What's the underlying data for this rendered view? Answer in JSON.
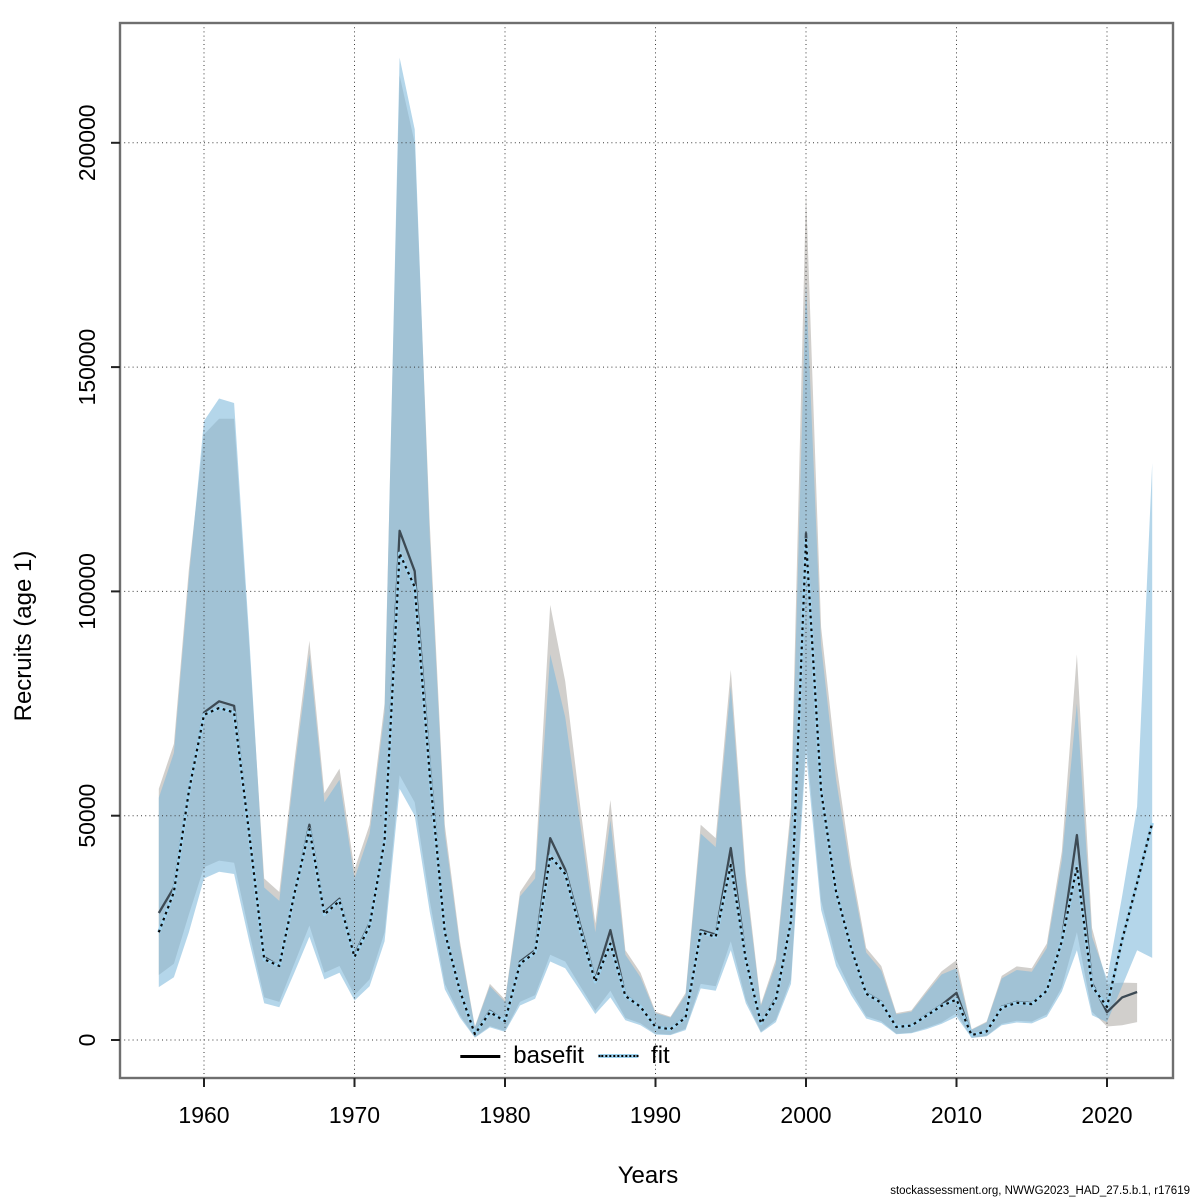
{
  "footer": {
    "text": "stockassessment.org, NWWG2023_HAD_27.5.b.1, r17619"
  },
  "chart_data": {
    "type": "line",
    "title": "",
    "xlabel": "Years",
    "ylabel": "Recruits (age 1)",
    "grid": "dotted",
    "legend_position": "bottom-center",
    "x_ticks": [
      1960,
      1970,
      1980,
      1990,
      2000,
      2010,
      2020
    ],
    "y_ticks": [
      0,
      50000,
      100000,
      150000,
      200000
    ],
    "xlim": [
      1954.4,
      2024.4
    ],
    "ylim": [
      -8500,
      226700
    ],
    "legend": [
      {
        "label": "basefit",
        "style": "solid",
        "color": "#000000"
      },
      {
        "label": "fit",
        "style": "dotted",
        "color": "#000000",
        "underlay": "#9fd3ef"
      }
    ],
    "years": [
      1957,
      1958,
      1959,
      1960,
      1961,
      1962,
      1963,
      1964,
      1965,
      1966,
      1967,
      1968,
      1969,
      1970,
      1971,
      1972,
      1973,
      1974,
      1975,
      1976,
      1977,
      1978,
      1979,
      1980,
      1981,
      1982,
      1983,
      1984,
      1985,
      1986,
      1987,
      1988,
      1989,
      1990,
      1991,
      1992,
      1993,
      1994,
      1995,
      1996,
      1997,
      1998,
      1999,
      2000,
      2001,
      2002,
      2003,
      2004,
      2005,
      2006,
      2007,
      2008,
      2009,
      2010,
      2011,
      2012,
      2013,
      2014,
      2015,
      2016,
      2017,
      2018,
      2019,
      2020,
      2021,
      2022,
      2023
    ],
    "series": [
      {
        "name": "basefit",
        "line_color": "#3d4a54",
        "band_color": "#d1cfcc",
        "values": [
          28300,
          34000,
          56000,
          73000,
          75500,
          74500,
          46500,
          18500,
          16500,
          32500,
          48000,
          28500,
          31500,
          19000,
          26000,
          45000,
          113500,
          104500,
          61000,
          24500,
          11000,
          1500,
          6500,
          4200,
          17500,
          20000,
          45000,
          38000,
          25500,
          13500,
          24500,
          10000,
          7500,
          3000,
          2500,
          5200,
          24500,
          23500,
          42800,
          18500,
          3800,
          9400,
          27000,
          113000,
          56000,
          33400,
          20700,
          10500,
          8500,
          2900,
          3300,
          5600,
          7800,
          10500,
          1100,
          2000,
          7400,
          8500,
          8200,
          11100,
          22300,
          45700,
          12700,
          6200,
          9500,
          10700,
          null
        ],
        "hi": [
          56000,
          66000,
          105000,
          135000,
          138500,
          138500,
          88000,
          36000,
          33000,
          62000,
          89000,
          55000,
          60500,
          38000,
          48000,
          75000,
          215000,
          200000,
          115000,
          48000,
          22000,
          3000,
          12500,
          9000,
          33000,
          38000,
          97000,
          80000,
          52000,
          26000,
          53500,
          20000,
          15000,
          6300,
          5200,
          10500,
          48000,
          45000,
          82500,
          37000,
          8000,
          18000,
          52000,
          189000,
          92000,
          62000,
          39000,
          20500,
          16500,
          6000,
          6600,
          11000,
          15300,
          17800,
          2400,
          4100,
          14300,
          16400,
          16000,
          21500,
          42000,
          86000,
          25000,
          12500,
          12800,
          12700,
          null
        ],
        "lo": [
          14500,
          17000,
          28000,
          38500,
          40000,
          39500,
          24000,
          9500,
          8500,
          17000,
          25500,
          15000,
          16500,
          10000,
          13500,
          24000,
          59000,
          53000,
          31000,
          12500,
          5500,
          600,
          3100,
          2000,
          8500,
          10000,
          19000,
          17500,
          12000,
          6500,
          11000,
          4900,
          3700,
          1400,
          1200,
          2500,
          12500,
          12000,
          22000,
          9000,
          1800,
          4500,
          13500,
          67000,
          31000,
          18000,
          11000,
          5300,
          4200,
          1400,
          1600,
          2700,
          3900,
          6000,
          500,
          900,
          3600,
          4300,
          4100,
          5700,
          11700,
          24000,
          6300,
          3000,
          3300,
          4000,
          null
        ]
      },
      {
        "name": "fit",
        "line_color": "#0b0b0b",
        "underlay_color": "#9fd3ef",
        "band_color": "rgba(125,184,218,0.58)",
        "values": [
          24000,
          33000,
          55500,
          72500,
          74000,
          73000,
          46000,
          18000,
          16500,
          32500,
          47000,
          28000,
          31000,
          18500,
          25500,
          44500,
          108500,
          101000,
          59000,
          24000,
          11000,
          1300,
          6200,
          4200,
          17000,
          19500,
          41000,
          37000,
          24500,
          13000,
          21500,
          9800,
          7400,
          2900,
          2400,
          5000,
          24000,
          23000,
          39000,
          18000,
          3700,
          9000,
          26500,
          111500,
          55500,
          33000,
          20500,
          10300,
          8300,
          2900,
          3200,
          5400,
          7600,
          9000,
          1100,
          1900,
          7200,
          8300,
          8000,
          11000,
          22000,
          38600,
          12000,
          7400,
          22300,
          35000,
          48400
        ],
        "hi": [
          54000,
          64000,
          103000,
          138000,
          143000,
          142000,
          90000,
          34000,
          31000,
          60000,
          86000,
          53000,
          58000,
          36000,
          46000,
          73000,
          219000,
          203000,
          112000,
          46000,
          21000,
          2800,
          12000,
          8500,
          32000,
          36000,
          86000,
          72000,
          48000,
          24000,
          49000,
          19000,
          14000,
          6000,
          5000,
          10000,
          46000,
          43000,
          79000,
          35000,
          7600,
          17000,
          50000,
          169000,
          88000,
          58000,
          37000,
          19500,
          15500,
          5700,
          6300,
          10500,
          14600,
          16000,
          2300,
          3900,
          13700,
          15600,
          15200,
          20500,
          40000,
          75000,
          23000,
          13500,
          32000,
          52000,
          128600
        ],
        "lo": [
          11800,
          14000,
          24000,
          36000,
          37500,
          37000,
          22000,
          8200,
          7300,
          15000,
          23000,
          13500,
          15000,
          8800,
          12000,
          22000,
          56000,
          50000,
          28500,
          11300,
          5000,
          500,
          2800,
          1800,
          7700,
          9200,
          17500,
          16000,
          11000,
          5800,
          9500,
          4400,
          3300,
          1200,
          1100,
          2200,
          11500,
          11000,
          20000,
          8200,
          1600,
          4000,
          12500,
          64000,
          29000,
          16500,
          10000,
          4800,
          3800,
          1300,
          1500,
          2400,
          3600,
          5200,
          450,
          800,
          3300,
          3900,
          3700,
          5200,
          10800,
          20000,
          5500,
          4000,
          12000,
          20000,
          18300
        ]
      }
    ]
  }
}
